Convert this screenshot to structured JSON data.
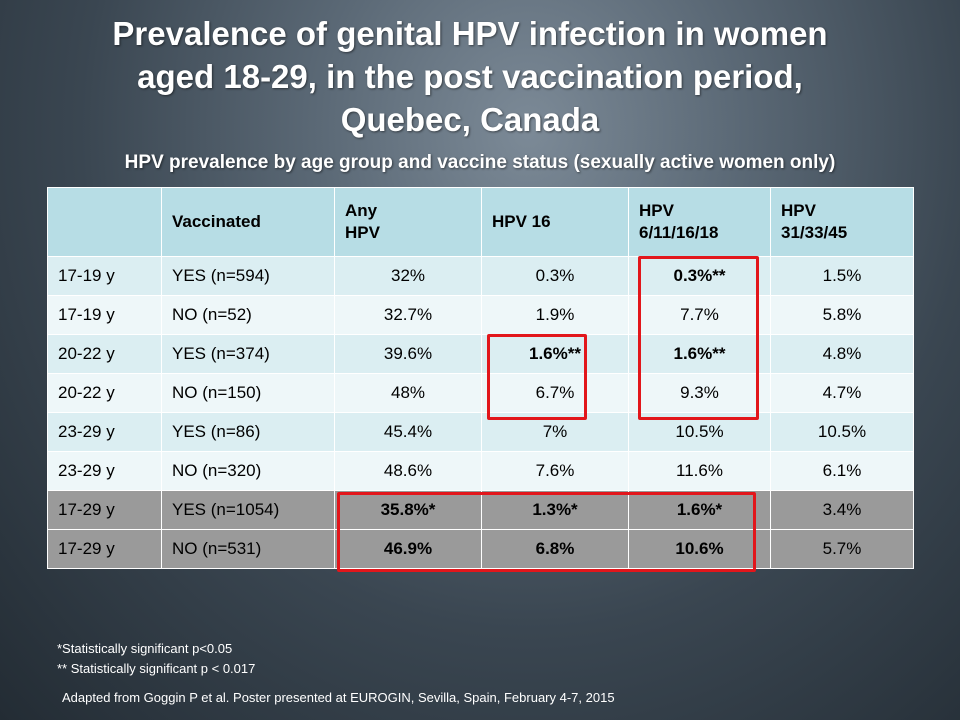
{
  "title_line1": "Prevalence of genital HPV infection in women",
  "title_line2": "aged 18-29, in the post vaccination period,",
  "title_line3": "Quebec, Canada",
  "subtitle": "HPV prevalence by age group and vaccine status (sexually active women only)",
  "table": {
    "headers": [
      "",
      "Vaccinated",
      "Any HPV",
      "HPV 16",
      "HPV 6/11/16/18",
      "HPV 31/33/45"
    ],
    "header_lines": {
      "any1": "Any",
      "any2": "HPV",
      "hpv6a": "HPV",
      "hpv6b": "6/11/16/18",
      "hpv31a": "HPV",
      "hpv31b": "31/33/45"
    },
    "rows": [
      [
        "17-19 y",
        "YES (n=594)",
        "32%",
        "0.3%",
        "0.3%**",
        "1.5%"
      ],
      [
        "17-19 y",
        "NO (n=52)",
        "32.7%",
        "1.9%",
        "7.7%",
        "5.8%"
      ],
      [
        "20-22 y",
        "YES (n=374)",
        "39.6%",
        "1.6%**",
        "1.6%**",
        "4.8%"
      ],
      [
        "20-22 y",
        "NO (n=150)",
        "48%",
        "6.7%",
        "9.3%",
        "4.7%"
      ],
      [
        "23-29 y",
        "YES (n=86)",
        "45.4%",
        "7%",
        "10.5%",
        "10.5%"
      ],
      [
        "23-29 y",
        "NO (n=320)",
        "48.6%",
        "7.6%",
        "11.6%",
        "6.1%"
      ],
      [
        "17-29 y",
        "YES (n=1054)",
        "35.8%*",
        "1.3%*",
        "1.6%*",
        "3.4%"
      ],
      [
        "17-29 y",
        "NO (n=531)",
        "46.9%",
        "6.8%",
        "10.6%",
        "5.7%"
      ]
    ]
  },
  "footnotes": {
    "sig1": "*Statistically significant p<0.05",
    "sig2": "** Statistically significant p < 0.017",
    "source": "Adapted from Goggin P et al. Poster presented at EUROGIN, Sevilla, Spain,  February 4-7, 2015"
  },
  "colors": {
    "header_bg": "#b7dde5",
    "row_odd": "#dbeef2",
    "row_even": "#eef7f9",
    "summary_rows": "#9a9a9a",
    "highlight_box": "#e2161b"
  }
}
